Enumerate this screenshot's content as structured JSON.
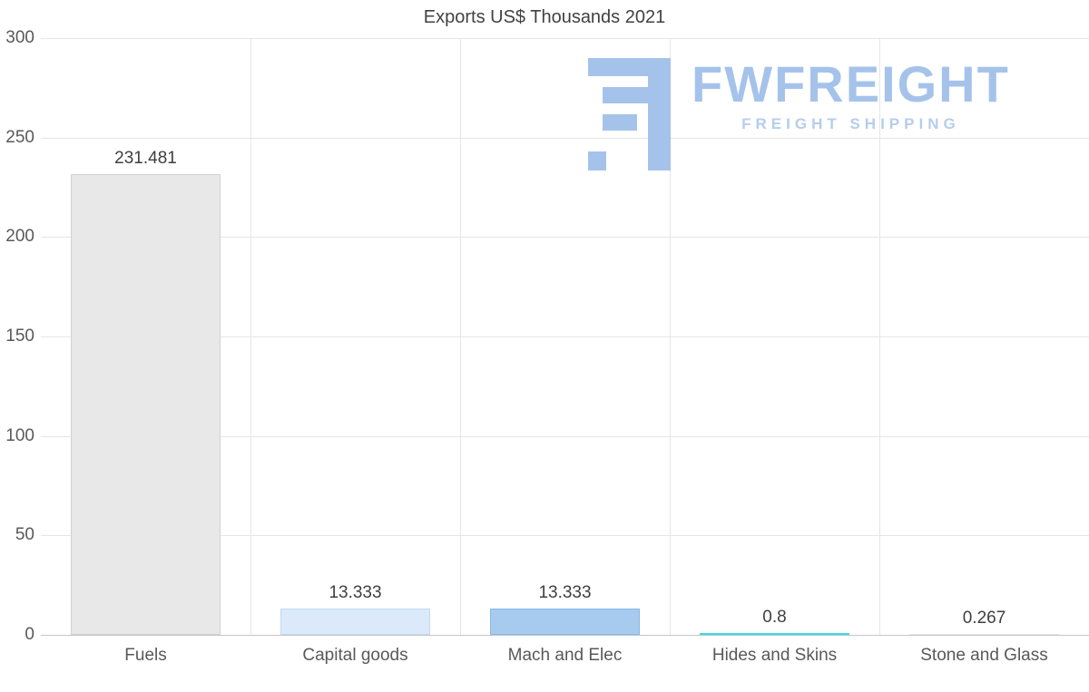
{
  "title": "Exports US$ Thousands 2021",
  "watermark": {
    "brand": "FWFREIGHT",
    "tagline": "FREIGHT SHIPPING",
    "brand_color": "#a5c3ea",
    "tagline_color": "#b6cdec"
  },
  "chart_data": {
    "type": "bar",
    "title": "Exports US$ Thousands 2021",
    "categories": [
      "Fuels",
      "Capital goods",
      "Mach and Elec",
      "Hides and Skins",
      "Stone and Glass"
    ],
    "values": [
      231.481,
      13.333,
      13.333,
      0.8,
      0.267
    ],
    "value_labels": [
      "231.481",
      "13.333",
      "13.333",
      "0.8",
      "0.267"
    ],
    "bar_colors": [
      "#e8e8e8",
      "#dbe9fa",
      "#a6cbee",
      "#2fe0e4",
      "#e8e8e8"
    ],
    "bar_borders": [
      "#d2d2d2",
      "#bfdaf5",
      "#88b9e7",
      "#00d2d8",
      "#d2d2d2"
    ],
    "xlabel": "",
    "ylabel": "",
    "ylim": [
      0,
      300
    ],
    "yticks": [
      0,
      50,
      100,
      150,
      200,
      250,
      300
    ],
    "grid": true,
    "legend": "none"
  }
}
